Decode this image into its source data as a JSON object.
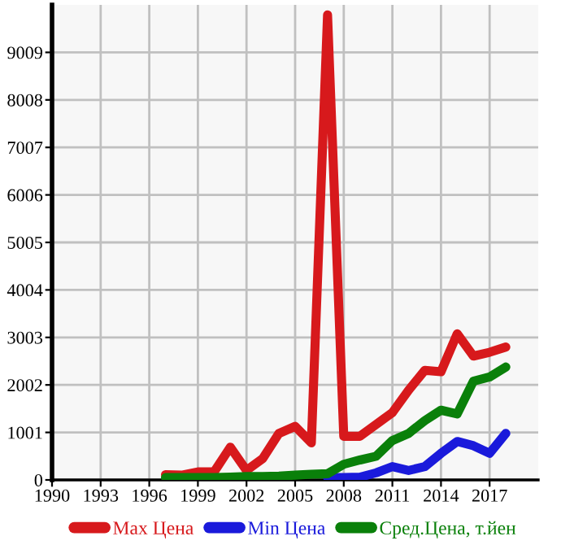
{
  "chart_data": {
    "type": "line",
    "x": [
      1997,
      1998,
      1999,
      2000,
      2001,
      2002,
      2003,
      2004,
      2005,
      2006,
      2007,
      2008,
      2009,
      2010,
      2011,
      2012,
      2013,
      2014,
      2015,
      2016,
      2017,
      2018
    ],
    "series": [
      {
        "name": "Max Цена",
        "color": "#d7191c",
        "values": [
          110,
          100,
          170,
          170,
          690,
          200,
          450,
          980,
          1130,
          780,
          9800,
          920,
          920,
          1170,
          1420,
          1890,
          2310,
          2280,
          3080,
          2610,
          2690,
          2800
        ]
      },
      {
        "name": "Min Цена",
        "color": "#1a1adb",
        "values": [
          null,
          null,
          null,
          null,
          null,
          null,
          null,
          null,
          null,
          null,
          50,
          50,
          60,
          150,
          280,
          200,
          280,
          560,
          810,
          720,
          560,
          980
        ]
      },
      {
        "name": "Сред.Цена, т.йен",
        "color": "#0a800a",
        "values": [
          50,
          50,
          50,
          50,
          60,
          70,
          70,
          80,
          100,
          120,
          130,
          330,
          420,
          500,
          830,
          980,
          1250,
          1470,
          1390,
          2080,
          2170,
          2380
        ]
      }
    ],
    "xlim": [
      1990,
      2020
    ],
    "xticks": [
      1990,
      1993,
      1996,
      1999,
      2002,
      2005,
      2008,
      2011,
      2014,
      2017
    ],
    "ylim": [
      0,
      10010
    ],
    "yticks": [
      0,
      1001,
      2002,
      3003,
      4004,
      5005,
      6006,
      7007,
      8008,
      9009
    ],
    "grid": true,
    "legend": "bottom",
    "marker": "none",
    "line_style": "solid"
  }
}
